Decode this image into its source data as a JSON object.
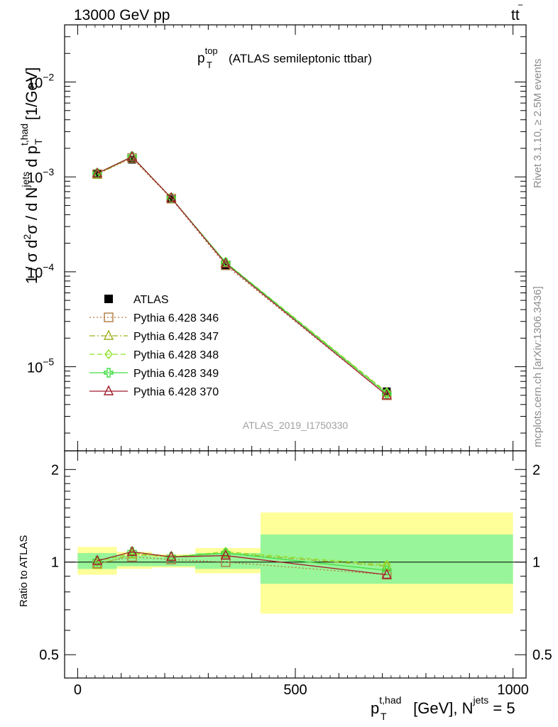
{
  "header": {
    "left": "13000 GeV pp",
    "right_main": "tt",
    "right_bar": "‾"
  },
  "side_labels": {
    "rivet": "Rivet 3.1.10, ≥ 2.5M events",
    "mcplots": "mcplots.cern.ch [arXiv:1306.3436]"
  },
  "watermark": "ATLAS_2019_I1750330",
  "chart_data": {
    "type": "line",
    "title": {
      "main": "p",
      "sup": "top",
      "sub": "T",
      "rest": "(ATLAS semileptonic ttbar)"
    },
    "ylabel": "1 / σ d²σ / d N^jets d p_T^t,had [1/GeV]",
    "ylabel_parts": {
      "pre": "1 / σ d",
      "sup2": "2",
      "mid": "σ / d N",
      "sup_jets": "jets",
      "mid2": " d p",
      "sup_thad": "t,had",
      "sub_T": "T",
      "post": " [1/GeV]"
    },
    "ratio_ylabel": "Ratio to ATLAS",
    "xlabel": "p_T^t,had [GeV], N^jets = 5",
    "xlabel_parts": {
      "p": "p",
      "sup": "t,had",
      "sub": "T",
      "mid": " [GeV], N",
      "sup2": "jets",
      "post": " = 5"
    },
    "xlim": [
      -30,
      1030
    ],
    "ylim": [
      1.3e-06,
      0.04
    ],
    "yscale": "log",
    "ratio_ylim": [
      0.42,
      2.3
    ],
    "x_ticks": [
      "0",
      "500",
      "1000"
    ],
    "y_tick_labels": [
      {
        "value": 0.01,
        "base": "10",
        "exp": "−2"
      },
      {
        "value": 0.001,
        "base": "10",
        "exp": "−3"
      },
      {
        "value": 0.0001,
        "base": "10",
        "exp": "−4"
      },
      {
        "value": 1e-05,
        "base": "10",
        "exp": "−5"
      }
    ],
    "ratio_ticks": [
      "0.5",
      "1",
      "2"
    ],
    "data": {
      "name": "ATLAS",
      "bins": [
        [
          0,
          90
        ],
        [
          90,
          170
        ],
        [
          170,
          270
        ],
        [
          270,
          420
        ],
        [
          420,
          1000
        ]
      ],
      "x": [
        45,
        125,
        215,
        340,
        710
      ],
      "y": [
        0.00108,
        0.00152,
        0.00058,
        0.000117,
        5.5e-06
      ],
      "band_inner": [
        [
          0.95,
          1.07
        ],
        [
          0.97,
          1.05
        ],
        [
          0.97,
          1.04
        ],
        [
          0.95,
          1.07
        ],
        [
          0.85,
          1.23
        ]
      ],
      "band_outer": [
        [
          0.91,
          1.12
        ],
        [
          0.95,
          1.08
        ],
        [
          0.96,
          1.06
        ],
        [
          0.92,
          1.11
        ],
        [
          0.68,
          1.45
        ]
      ]
    },
    "series": [
      {
        "name": "Pythia 6.428 346",
        "color": "#b07a40",
        "dash": "2,3",
        "marker": "square",
        "x": [
          45,
          125,
          215,
          340,
          710
        ],
        "y": [
          0.00107,
          0.00158,
          0.00059,
          0.000117,
          5e-06
        ],
        "ratio": [
          0.99,
          1.04,
          1.02,
          1.0,
          0.91
        ]
      },
      {
        "name": "Pythia 6.428 347",
        "color": "#a0b020",
        "dash": "8,3,2,3",
        "marker": "triangle",
        "x": [
          45,
          125,
          215,
          340,
          710
        ],
        "y": [
          0.00106,
          0.00162,
          0.0006,
          0.000125,
          5.3e-06
        ],
        "ratio": [
          0.98,
          1.06,
          1.04,
          1.07,
          0.97
        ]
      },
      {
        "name": "Pythia 6.428 348",
        "color": "#8ee028",
        "dash": "7,4",
        "marker": "diamond",
        "x": [
          45,
          125,
          215,
          340,
          710
        ],
        "y": [
          0.00108,
          0.00163,
          0.0006,
          0.000126,
          5.4e-06
        ],
        "ratio": [
          1.0,
          1.07,
          1.04,
          1.08,
          0.98
        ]
      },
      {
        "name": "Pythia 6.428 349",
        "color": "#44dd44",
        "dash": "",
        "marker": "cross",
        "x": [
          45,
          125,
          215,
          340,
          710
        ],
        "y": [
          0.00109,
          0.00164,
          0.0006,
          0.000125,
          5.2e-06
        ],
        "ratio": [
          1.01,
          1.08,
          1.04,
          1.07,
          0.94
        ]
      },
      {
        "name": "Pythia 6.428 370",
        "color": "#a01f2e",
        "dash": "",
        "marker": "triangle",
        "x": [
          45,
          125,
          215,
          340,
          710
        ],
        "y": [
          0.00109,
          0.00163,
          0.0006,
          0.000122,
          5e-06
        ],
        "ratio": [
          1.01,
          1.08,
          1.04,
          1.05,
          0.91
        ]
      }
    ]
  }
}
